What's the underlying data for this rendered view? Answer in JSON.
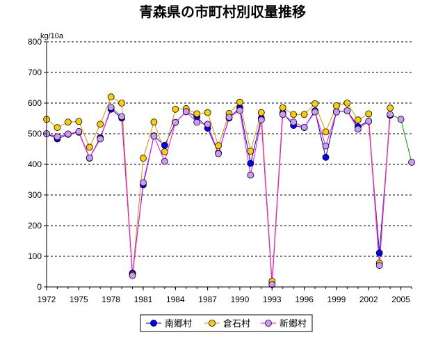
{
  "chart_data": {
    "type": "line",
    "title": "青森県の市町村別収量推移",
    "ylabel": "kg/10a",
    "xlabel": "",
    "xlim": [
      1972,
      2006
    ],
    "ylim": [
      0,
      800
    ],
    "yticks": [
      0,
      100,
      200,
      300,
      400,
      500,
      600,
      700,
      800
    ],
    "xticks": [
      1972,
      1975,
      1978,
      1981,
      1984,
      1987,
      1990,
      1993,
      1996,
      1999,
      2002,
      2005
    ],
    "grid": "horizontal-dashed",
    "legend_position": "bottom-center",
    "series": [
      {
        "name": "南郷村",
        "line_color": "#0000cc",
        "marker_color": "#0000ff",
        "points": [
          [
            1972,
            500
          ],
          [
            1973,
            483
          ],
          [
            1974,
            498
          ],
          [
            1975,
            505
          ],
          [
            1976,
            420
          ],
          [
            1977,
            487
          ],
          [
            1978,
            580
          ],
          [
            1979,
            551
          ],
          [
            1980,
            45
          ],
          [
            1981,
            333
          ],
          [
            1982,
            493
          ],
          [
            1983,
            462
          ],
          [
            1984,
            537
          ],
          [
            1985,
            572
          ],
          [
            1986,
            555
          ],
          [
            1987,
            518
          ],
          [
            1988,
            437
          ],
          [
            1989,
            551
          ],
          [
            1990,
            585
          ],
          [
            1991,
            403
          ],
          [
            1992,
            551
          ],
          [
            1993,
            10
          ],
          [
            1994,
            568
          ],
          [
            1995,
            527
          ],
          [
            1996,
            520
          ],
          [
            1997,
            575
          ],
          [
            1998,
            423
          ],
          [
            1999,
            572
          ],
          [
            2000,
            575
          ],
          [
            2001,
            523
          ],
          [
            2002,
            541
          ],
          [
            2003,
            111
          ],
          [
            2004,
            560
          ]
        ]
      },
      {
        "name": "倉石村",
        "line_color": "#cc9900",
        "marker_color": "#ffcc00",
        "points": [
          [
            1972,
            547
          ],
          [
            1973,
            520
          ],
          [
            1974,
            538
          ],
          [
            1975,
            540
          ],
          [
            1976,
            456
          ],
          [
            1977,
            531
          ],
          [
            1978,
            620
          ],
          [
            1979,
            600
          ],
          [
            1980,
            40
          ],
          [
            1981,
            420
          ],
          [
            1982,
            538
          ],
          [
            1983,
            441
          ],
          [
            1984,
            580
          ],
          [
            1985,
            582
          ],
          [
            1986,
            565
          ],
          [
            1987,
            569
          ],
          [
            1988,
            461
          ],
          [
            1989,
            566
          ],
          [
            1990,
            603
          ],
          [
            1991,
            443
          ],
          [
            1992,
            569
          ],
          [
            1993,
            19
          ],
          [
            1994,
            585
          ],
          [
            1995,
            563
          ],
          [
            1996,
            563
          ],
          [
            1997,
            598
          ],
          [
            1998,
            506
          ],
          [
            1999,
            591
          ],
          [
            2000,
            600
          ],
          [
            2001,
            545
          ],
          [
            2002,
            565
          ],
          [
            2003,
            78
          ],
          [
            2004,
            584
          ]
        ]
      },
      {
        "name": "新郷村",
        "line_color": "#009900",
        "link_line_color": "#ff00ff",
        "marker_color": "#cc99ff",
        "points": [
          [
            1972,
            500
          ],
          [
            1973,
            490
          ],
          [
            1974,
            499
          ],
          [
            1975,
            507
          ],
          [
            1976,
            421
          ],
          [
            1977,
            483
          ],
          [
            1978,
            586
          ],
          [
            1979,
            556
          ],
          [
            1980,
            37
          ],
          [
            1981,
            340
          ],
          [
            1982,
            492
          ],
          [
            1983,
            410
          ],
          [
            1984,
            537
          ],
          [
            1985,
            572
          ],
          [
            1986,
            537
          ],
          [
            1987,
            531
          ],
          [
            1988,
            435
          ],
          [
            1989,
            554
          ],
          [
            1990,
            576
          ],
          [
            1991,
            365
          ],
          [
            1992,
            545
          ],
          [
            1993,
            8
          ],
          [
            1994,
            563
          ],
          [
            1995,
            538
          ],
          [
            1996,
            521
          ],
          [
            1997,
            571
          ],
          [
            1998,
            460
          ],
          [
            1999,
            571
          ],
          [
            2000,
            575
          ],
          [
            2001,
            515
          ],
          [
            2002,
            541
          ],
          [
            2003,
            70
          ],
          [
            2004,
            563
          ],
          [
            2005,
            547
          ],
          [
            2006,
            407
          ]
        ]
      }
    ]
  }
}
